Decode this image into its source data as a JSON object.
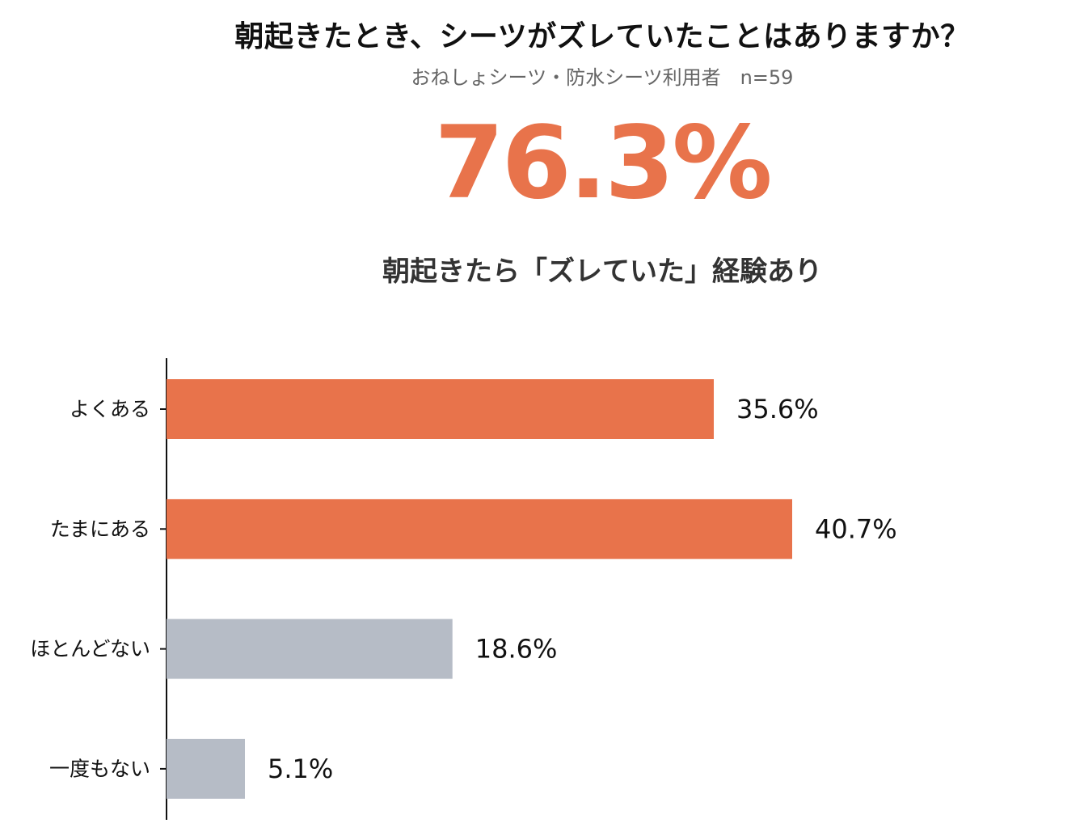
{
  "header": {
    "title": "朝起きたとき、シーツがズレていたことはありますか？",
    "subtitle": "おねしょシーツ・防水シーツ利用者　n=59",
    "highlight_value": "76.3%",
    "highlight_caption": "朝起きたら「ズレていた」経験あり"
  },
  "colors": {
    "accent": "#e8734b",
    "muted": "#b6bcc6",
    "axis": "#111111"
  },
  "chart_data": {
    "type": "bar",
    "orientation": "horizontal",
    "categories": [
      "よくある",
      "たまにある",
      "ほとんどない",
      "一度もない"
    ],
    "values": [
      35.6,
      40.7,
      18.6,
      5.1
    ],
    "value_labels": [
      "35.6%",
      "40.7%",
      "18.6%",
      "5.1%"
    ],
    "bar_colors": [
      "#e8734b",
      "#e8734b",
      "#b6bcc6",
      "#b6bcc6"
    ],
    "unit": "%",
    "xlim": [
      0,
      40.7
    ],
    "grid": false
  }
}
